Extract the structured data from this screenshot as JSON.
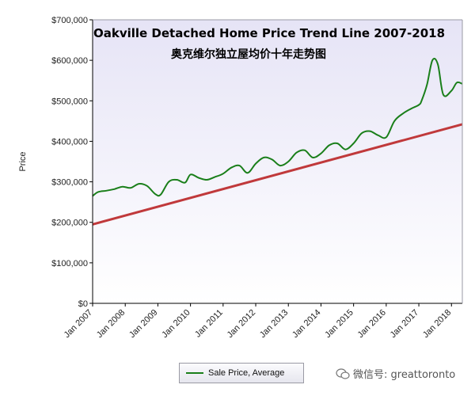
{
  "chart_data": {
    "type": "line",
    "title": "Oakville Detached Home Price Trend Line 2007-2018",
    "subtitle": "奥克维尔独立屋均价十年走势图",
    "xlabel": "",
    "ylabel": "Price",
    "x_ticks": [
      "Jan 2007",
      "Jan 2008",
      "Jan 2009",
      "Jan 2010",
      "Jan 2011",
      "Jan 2012",
      "Jan 2013",
      "Jan 2014",
      "Jan 2015",
      "Jan 2016",
      "Jan 2017",
      "Jan 2018"
    ],
    "y_ticks": [
      "$0",
      "$100,000",
      "$200,000",
      "$300,000",
      "$400,000",
      "$500,000",
      "$600,000",
      "$700,000"
    ],
    "ylim": [
      0,
      700000
    ],
    "xlim": [
      "2007-01",
      "2018-05"
    ],
    "grid": false,
    "legend_position": "bottom",
    "series": [
      {
        "name": "Sale Price, Average",
        "color": "#1a7f1a",
        "x": [
          "2007-01",
          "2007-03",
          "2007-06",
          "2007-09",
          "2007-12",
          "2008-03",
          "2008-06",
          "2008-09",
          "2008-12",
          "2009-02",
          "2009-05",
          "2009-08",
          "2009-11",
          "2010-01",
          "2010-04",
          "2010-07",
          "2010-10",
          "2011-01",
          "2011-04",
          "2011-07",
          "2011-10",
          "2012-01",
          "2012-04",
          "2012-07",
          "2012-10",
          "2013-01",
          "2013-04",
          "2013-07",
          "2013-10",
          "2014-01",
          "2014-04",
          "2014-07",
          "2014-10",
          "2015-01",
          "2015-04",
          "2015-07",
          "2015-10",
          "2016-01",
          "2016-04",
          "2016-07",
          "2016-10",
          "2017-01",
          "2017-02",
          "2017-04",
          "2017-06",
          "2017-08",
          "2017-10",
          "2018-01",
          "2018-03",
          "2018-05"
        ],
        "y": [
          265000,
          275000,
          278000,
          282000,
          288000,
          285000,
          295000,
          290000,
          270000,
          268000,
          300000,
          305000,
          298000,
          318000,
          310000,
          305000,
          312000,
          320000,
          335000,
          340000,
          322000,
          345000,
          360000,
          355000,
          340000,
          350000,
          372000,
          378000,
          360000,
          370000,
          390000,
          395000,
          380000,
          395000,
          420000,
          425000,
          415000,
          410000,
          450000,
          468000,
          480000,
          490000,
          500000,
          540000,
          600000,
          590000,
          515000,
          525000,
          545000,
          542000
        ]
      },
      {
        "name": "",
        "color": "#c0393b",
        "type": "trend",
        "x": [
          "2007-01",
          "2018-05"
        ],
        "y": [
          195000,
          442000
        ]
      }
    ]
  },
  "watermark": {
    "text": "微信号: greattoronto",
    "icon": "chat-bubble-icon"
  }
}
